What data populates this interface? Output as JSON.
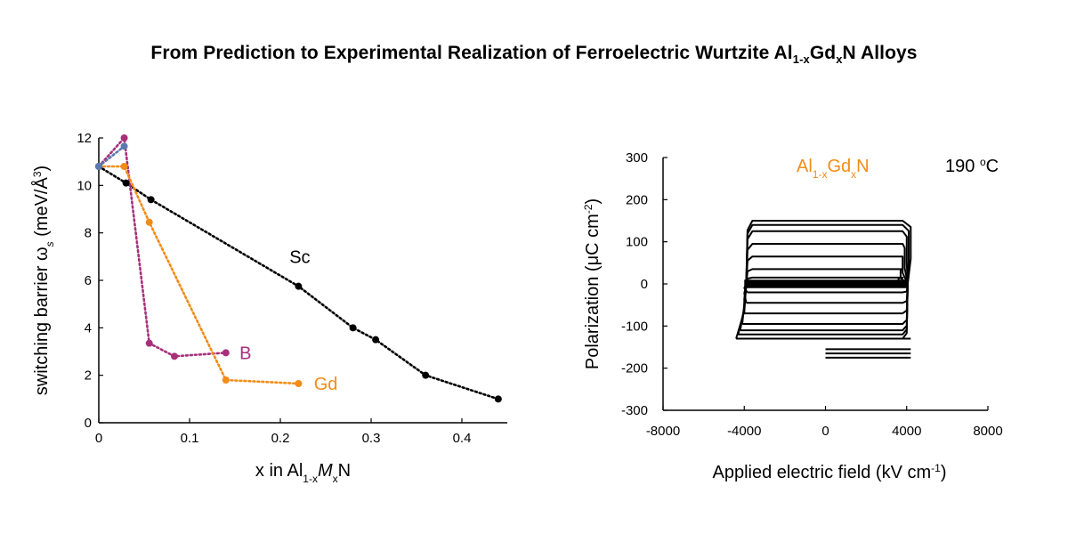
{
  "page": {
    "title_main": "From Prediction to Experimental Realization of Ferroelectric Wurtzite Al",
    "title_sub1": "1-x",
    "title_mid": "Gd",
    "title_sub2": "x",
    "title_end": "N Alloys"
  },
  "chart_data": [
    {
      "type": "line",
      "ylabel": "switching barrier ω",
      "ylabel_sub": "s",
      "ylabel_unit": " (meV/Å",
      "ylabel_sup": "3",
      "ylabel_close": ")",
      "xlabel_pre": "x in Al",
      "xlabel_sub1": "1-x",
      "xlabel_M": "M",
      "xlabel_sub2": "x",
      "xlabel_post": "N",
      "xlim": [
        0,
        0.45
      ],
      "ylim": [
        0,
        12
      ],
      "x_ticks": [
        0,
        0.1,
        0.2,
        0.3,
        0.4
      ],
      "x_tick_labels": [
        "0",
        "0.1",
        "0.2",
        "0.3",
        "0.4"
      ],
      "y_ticks": [
        0,
        2,
        4,
        6,
        8,
        10,
        12
      ],
      "y_tick_labels": [
        "0",
        "2",
        "4",
        "6",
        "8",
        "10",
        "12"
      ],
      "grid": false,
      "series": [
        {
          "name": "Sc",
          "color": "#000000",
          "x": [
            0,
            0.03,
            0.0575,
            0.22,
            0.28,
            0.305,
            0.36,
            0.44
          ],
          "y": [
            10.8,
            10.1,
            9.4,
            5.75,
            4.0,
            3.5,
            2.0,
            1.0
          ]
        },
        {
          "name": "B",
          "color": "#a8307a",
          "x": [
            0,
            0.028,
            0.0556,
            0.0833,
            0.14
          ],
          "y": [
            10.8,
            12.0,
            3.35,
            2.8,
            2.95
          ]
        },
        {
          "name": "Gd",
          "color": "#f28c18",
          "x": [
            0,
            0.028,
            0.0556,
            0.14,
            0.22
          ],
          "y": [
            10.8,
            10.8,
            8.45,
            1.8,
            1.65
          ]
        },
        {
          "name": "",
          "color": "#5b79b0",
          "x": [
            0,
            0.028
          ],
          "y": [
            10.8,
            11.65
          ]
        }
      ],
      "annotations": [
        {
          "text": "Sc",
          "x": 0.21,
          "y": 7.0,
          "color": "#000000"
        },
        {
          "text": "B",
          "x": 0.155,
          "y": 2.95,
          "color": "#a8307a"
        },
        {
          "text": "Gd",
          "x": 0.237,
          "y": 1.65,
          "color": "#f28c18"
        }
      ]
    },
    {
      "type": "line",
      "xlabel": "Applied electric field (kV cm",
      "xlabel_sup": "-1",
      "xlabel_close": ")",
      "ylabel": "Polarization (μC cm",
      "ylabel_sup": "-2",
      "ylabel_close": ")",
      "xlim": [
        -8000,
        8000
      ],
      "ylim": [
        -300,
        300
      ],
      "x_ticks": [
        -8000,
        -4000,
        0,
        4000,
        8000
      ],
      "x_tick_labels": [
        "-8000",
        "-4000",
        "0",
        "4000",
        "8000"
      ],
      "y_ticks": [
        300,
        200,
        100,
        0,
        -100,
        -200,
        -300
      ],
      "y_tick_labels": [
        "300",
        "200",
        "100",
        "0",
        "-100",
        "-200",
        "-300"
      ],
      "grid": false,
      "legend_text_pre": "Al",
      "legend_text_sub1": "1-x",
      "legend_text_mid": "Gd",
      "legend_text_sub2": "x",
      "legend_text_post": "N",
      "legend_color": "#f28c18",
      "temperature_text": "190 ",
      "temperature_sup": "o",
      "temperature_unit": "C",
      "loops": [
        {
          "emax": 4200,
          "pmax": 150,
          "emin": -4400,
          "pmin": -130
        },
        {
          "emax": 4100,
          "pmax": 140,
          "emin": -4300,
          "pmin": -120
        },
        {
          "emax": 4000,
          "pmax": 125,
          "emin": -4200,
          "pmin": -110
        },
        {
          "emax": 3900,
          "pmax": 95,
          "emin": -4100,
          "pmin": -95
        },
        {
          "emax": 3800,
          "pmax": 65,
          "emin": -4000,
          "pmin": -70
        },
        {
          "emax": 3700,
          "pmax": 35,
          "emin": -3900,
          "pmin": -45
        },
        {
          "emax": 3600,
          "pmax": 15,
          "emin": -3850,
          "pmin": -20
        }
      ],
      "branch_ends": [
        -130,
        -155,
        -165,
        -175
      ],
      "color": "#000000"
    }
  ]
}
